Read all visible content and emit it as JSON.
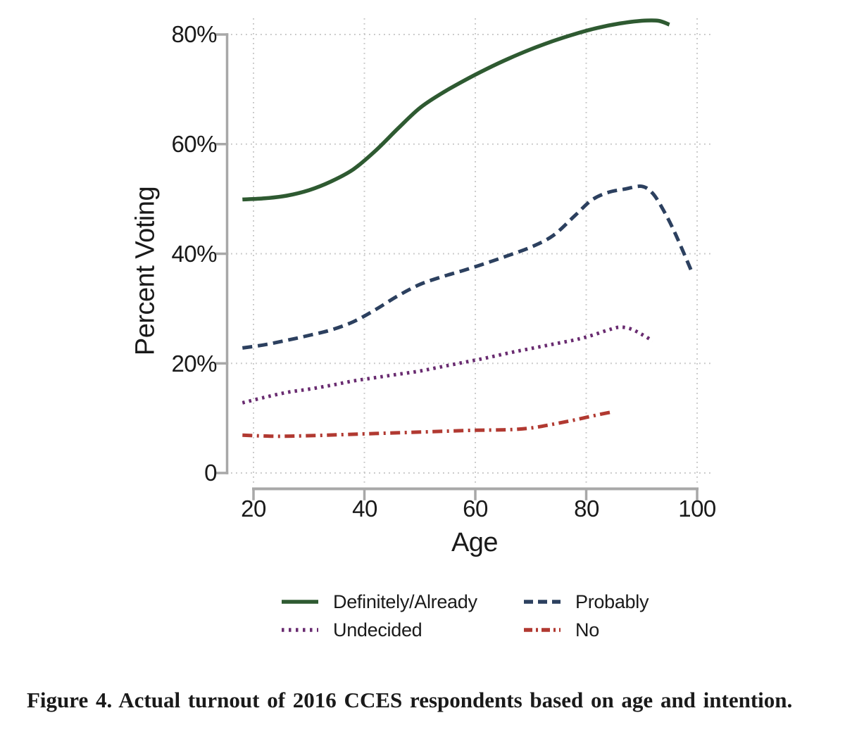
{
  "figure": {
    "caption": "Figure 4. Actual turnout of 2016 CCES respondents based on age and intention."
  },
  "chart_data": {
    "type": "line",
    "title": "",
    "xlabel": "Age",
    "ylabel": "Percent Voting",
    "xlim": [
      15,
      102
    ],
    "ylim": [
      0,
      86
    ],
    "grid": true,
    "legend_position": "bottom",
    "xticks": [
      20,
      40,
      60,
      80,
      100
    ],
    "xticklabels": [
      "20",
      "40",
      "60",
      "80",
      "100"
    ],
    "yticks": [
      0,
      20,
      40,
      60,
      80
    ],
    "yticklabels": [
      "0",
      "20%",
      "40%",
      "60%",
      "80%"
    ],
    "axis_color": "#a8a8a8",
    "grid_color": "#c6c6c6",
    "series": [
      {
        "name": "Definitely/Already",
        "color": "#2e5a31",
        "dash": "solid",
        "points": [
          [
            18,
            49.9
          ],
          [
            22,
            50.1
          ],
          [
            26,
            50.6
          ],
          [
            30,
            51.6
          ],
          [
            34,
            53.2
          ],
          [
            38,
            55.4
          ],
          [
            42,
            58.8
          ],
          [
            46,
            62.8
          ],
          [
            50,
            66.6
          ],
          [
            54,
            69.3
          ],
          [
            58,
            71.6
          ],
          [
            62,
            73.7
          ],
          [
            66,
            75.6
          ],
          [
            70,
            77.3
          ],
          [
            74,
            78.8
          ],
          [
            78,
            80.1
          ],
          [
            82,
            81.2
          ],
          [
            86,
            82.0
          ],
          [
            90,
            82.5
          ],
          [
            93,
            82.5
          ],
          [
            95,
            81.8
          ]
        ]
      },
      {
        "name": "Probably",
        "color": "#2c405f",
        "dash": "dashed",
        "points": [
          [
            18,
            22.8
          ],
          [
            22,
            23.4
          ],
          [
            26,
            24.2
          ],
          [
            30,
            25.1
          ],
          [
            34,
            26.1
          ],
          [
            38,
            27.6
          ],
          [
            42,
            29.8
          ],
          [
            46,
            32.3
          ],
          [
            50,
            34.4
          ],
          [
            54,
            35.8
          ],
          [
            58,
            37.0
          ],
          [
            62,
            38.3
          ],
          [
            66,
            39.7
          ],
          [
            70,
            41.2
          ],
          [
            74,
            43.3
          ],
          [
            78,
            47.0
          ],
          [
            81,
            49.8
          ],
          [
            84,
            51.2
          ],
          [
            87,
            51.8
          ],
          [
            90,
            52.3
          ],
          [
            92,
            51.0
          ],
          [
            94,
            47.8
          ],
          [
            96,
            43.8
          ],
          [
            99,
            36.8
          ]
        ]
      },
      {
        "name": "Undecided",
        "color": "#692b70",
        "dash": "dotted",
        "points": [
          [
            18,
            12.8
          ],
          [
            22,
            13.8
          ],
          [
            26,
            14.7
          ],
          [
            30,
            15.3
          ],
          [
            34,
            16.0
          ],
          [
            38,
            16.8
          ],
          [
            42,
            17.4
          ],
          [
            46,
            18.0
          ],
          [
            50,
            18.6
          ],
          [
            54,
            19.4
          ],
          [
            58,
            20.2
          ],
          [
            62,
            21.0
          ],
          [
            66,
            21.9
          ],
          [
            70,
            22.7
          ],
          [
            74,
            23.5
          ],
          [
            78,
            24.3
          ],
          [
            81,
            25.1
          ],
          [
            84,
            26.1
          ],
          [
            86,
            26.6
          ],
          [
            88,
            26.3
          ],
          [
            90,
            25.3
          ],
          [
            92,
            24.1
          ]
        ]
      },
      {
        "name": "No",
        "color": "#b13931",
        "dash": "dashdot",
        "points": [
          [
            18,
            6.9
          ],
          [
            24,
            6.7
          ],
          [
            30,
            6.8
          ],
          [
            36,
            7.0
          ],
          [
            42,
            7.2
          ],
          [
            48,
            7.4
          ],
          [
            54,
            7.6
          ],
          [
            60,
            7.8
          ],
          [
            66,
            7.9
          ],
          [
            70,
            8.2
          ],
          [
            74,
            8.9
          ],
          [
            78,
            9.7
          ],
          [
            82,
            10.6
          ],
          [
            85,
            11.2
          ]
        ]
      }
    ]
  }
}
